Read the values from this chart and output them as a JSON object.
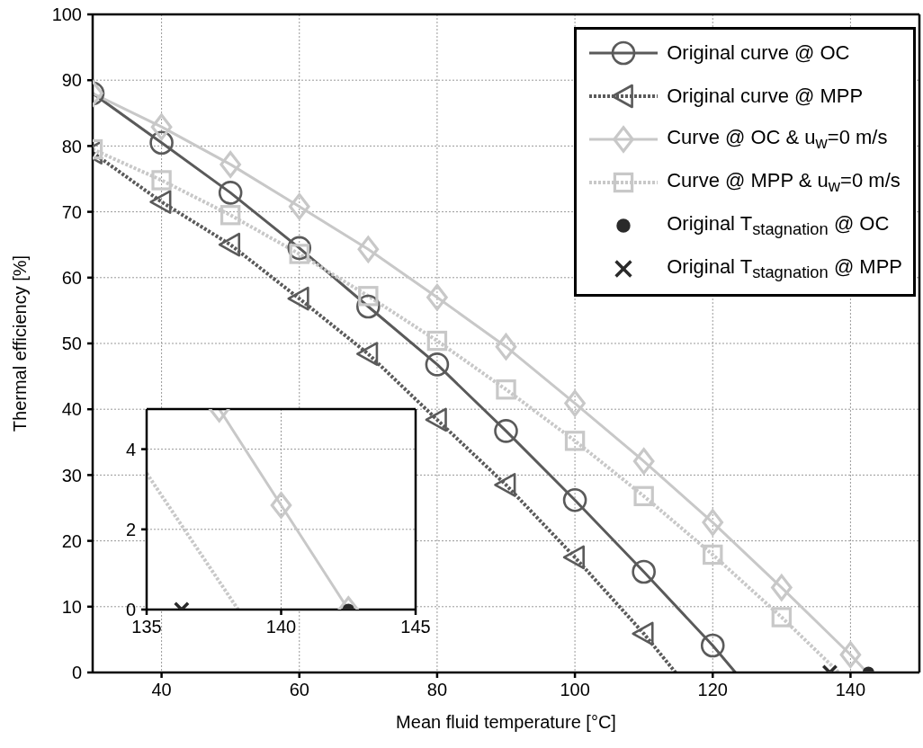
{
  "chart_data": [
    {
      "type": "line",
      "xlabel": "Mean fluid temperature [°C]",
      "ylabel": "Thermal efficiency [%]",
      "xlim": [
        30,
        150
      ],
      "ylim": [
        0,
        100
      ],
      "xticks": [
        40,
        60,
        80,
        100,
        120,
        140
      ],
      "yticks": [
        0,
        10,
        20,
        30,
        40,
        50,
        60,
        70,
        80,
        90,
        100
      ],
      "grid": true,
      "legend": "top right",
      "series": [
        {
          "name": "Original curve @ OC",
          "type": "line",
          "color": "#5a5a5a",
          "marker": "circle",
          "line_style": "solid",
          "x": [
            30,
            40,
            50,
            60,
            70,
            80,
            90,
            100,
            110,
            120,
            123.3
          ],
          "values": [
            88,
            80.5,
            72.9,
            64.5,
            55.6,
            46.8,
            36.7,
            26.2,
            15.3,
            4.1,
            0
          ]
        },
        {
          "name": "Original curve @ MPP",
          "type": "line",
          "color": "#5a5a5a",
          "marker": "triangle",
          "line_style": "dotted",
          "x": [
            30,
            40,
            50,
            60,
            70,
            80,
            90,
            100,
            110,
            114.6
          ],
          "values": [
            79,
            71.5,
            65,
            56.8,
            48.4,
            38.4,
            28.5,
            17.5,
            5.9,
            0
          ]
        },
        {
          "name": "Curve @ OC & u$_{w}$=0 m/s",
          "type": "line",
          "color": "#c8c8c8",
          "marker": "diamond",
          "line_style": "solid",
          "x": [
            30,
            40,
            50,
            60,
            70,
            80,
            90,
            100,
            110,
            120,
            130,
            140,
            142.4
          ],
          "values": [
            88,
            82.9,
            77.2,
            70.8,
            64.3,
            57,
            49.5,
            40.9,
            32.1,
            22.8,
            12.9,
            2.7,
            0
          ]
        },
        {
          "name": "Curve @ MPP & u$_{w}$=0 m/s",
          "type": "line",
          "color": "#c8c8c8",
          "marker": "square",
          "line_style": "dotted",
          "x": [
            30,
            40,
            50,
            60,
            70,
            80,
            90,
            100,
            110,
            120,
            130,
            138.3
          ],
          "values": [
            79.5,
            74.8,
            69.5,
            63.6,
            57.2,
            50.4,
            43,
            35.2,
            26.8,
            17.9,
            8.4,
            0
          ]
        },
        {
          "name": "Original T$_{stagnation}$ @ OC",
          "type": "scatter",
          "color": "#2a2a2a",
          "marker": "circle",
          "x": [
            142.6
          ],
          "values": [
            0
          ]
        },
        {
          "name": "Original T$_{stagnation}$ @ MPP",
          "type": "scatter",
          "color": "#2a2a2a",
          "marker": "cross",
          "x": [
            137
          ],
          "values": [
            0
          ]
        }
      ]
    },
    {
      "type": "line",
      "xlim": [
        135,
        145
      ],
      "ylim": [
        0,
        5
      ],
      "xticks": [
        135,
        140,
        145
      ],
      "yticks": [
        0,
        2,
        4
      ],
      "grid": true,
      "series": [
        {
          "type": "line",
          "color": "#c8c8c8",
          "marker": "diamond",
          "line_style": "solid",
          "x": [
            137.7,
            140,
            142.5
          ],
          "values": [
            5,
            2.6,
            0
          ]
        },
        {
          "type": "line",
          "color": "#c8c8c8",
          "marker": "none",
          "line_style": "dotted",
          "x": [
            135,
            138.4
          ],
          "values": [
            3.4,
            0
          ]
        },
        {
          "type": "scatter",
          "color": "#2a2a2a",
          "marker": "circle",
          "x": [
            142.5
          ],
          "values": [
            0
          ]
        },
        {
          "type": "scatter",
          "color": "#2a2a2a",
          "marker": "cross",
          "x": [
            136.3
          ],
          "values": [
            0
          ]
        }
      ]
    }
  ]
}
